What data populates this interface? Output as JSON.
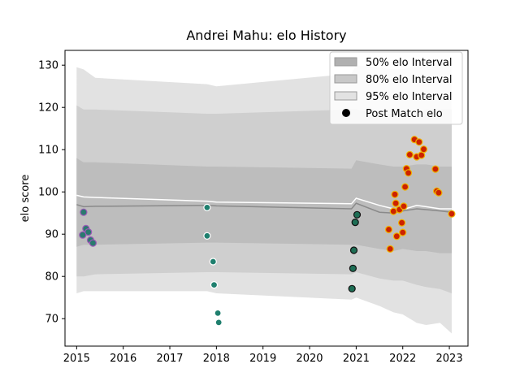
{
  "chart_data": {
    "type": "line",
    "title": "Andrei Mahu: elo History",
    "xlabel": "",
    "ylabel": "elo score",
    "xlim": [
      2014.75,
      2023.4
    ],
    "ylim": [
      63.5,
      133.5
    ],
    "x_ticks": [
      "2015",
      "2016",
      "2017",
      "2018",
      "2019",
      "2020",
      "2021",
      "2022",
      "2023"
    ],
    "y_ticks": [
      "70",
      "80",
      "90",
      "100",
      "110",
      "120",
      "130"
    ],
    "grid": false,
    "legend_position": "top-right",
    "legend": [
      {
        "label": "50% elo Interval",
        "color": "#b0b0b0"
      },
      {
        "label": "80% elo Interval",
        "color": "#c8c8c8"
      },
      {
        "label": "95% elo Interval",
        "color": "#e2e2e2"
      },
      {
        "label": "Post Match elo",
        "color": "#000000"
      }
    ],
    "bands": {
      "x": [
        2015.0,
        2015.15,
        2015.4,
        2017.8,
        2018.0,
        2020.9,
        2021.0,
        2021.5,
        2021.8,
        2022.0,
        2022.3,
        2022.5,
        2022.8,
        2023.05
      ],
      "mean": [
        97.0,
        96.5,
        96.6,
        96.8,
        96.7,
        96.0,
        97.3,
        95.2,
        95.0,
        95.5,
        96.0,
        95.8,
        95.5,
        95.2
      ],
      "expected": [
        99.2,
        98.8,
        98.7,
        97.8,
        97.6,
        97.2,
        98.5,
        96.8,
        96.0,
        95.8,
        96.8,
        96.5,
        96.0,
        96.0
      ],
      "p50": [
        [
          87.0,
          108.0
        ],
        [
          87.5,
          107.0
        ],
        [
          87.5,
          107.0
        ],
        [
          88.0,
          106.0
        ],
        [
          88.0,
          106.0
        ],
        [
          87.5,
          105.5
        ],
        [
          87.5,
          107.5
        ],
        [
          86.5,
          106.5
        ],
        [
          86.0,
          106.0
        ],
        [
          86.5,
          106.0
        ],
        [
          86.0,
          106.5
        ],
        [
          86.0,
          106.5
        ],
        [
          85.5,
          106.0
        ],
        [
          85.5,
          106.0
        ]
      ],
      "p80": [
        [
          80.0,
          120.5
        ],
        [
          80.0,
          119.5
        ],
        [
          80.5,
          119.5
        ],
        [
          81.0,
          118.5
        ],
        [
          81.0,
          118.5
        ],
        [
          80.5,
          119.5
        ],
        [
          81.0,
          119.5
        ],
        [
          79.5,
          118.5
        ],
        [
          79.0,
          118.5
        ],
        [
          79.0,
          118.5
        ],
        [
          78.0,
          119.0
        ],
        [
          77.5,
          119.5
        ],
        [
          77.0,
          119.5
        ],
        [
          76.0,
          119.5
        ]
      ],
      "p95": [
        [
          76.0,
          129.5
        ],
        [
          76.5,
          129.0
        ],
        [
          76.5,
          127.0
        ],
        [
          76.5,
          125.5
        ],
        [
          76.0,
          125.0
        ],
        [
          74.5,
          128.0
        ],
        [
          75.0,
          130.0
        ],
        [
          73.0,
          129.5
        ],
        [
          71.5,
          129.0
        ],
        [
          71.0,
          129.0
        ],
        [
          69.0,
          130.0
        ],
        [
          68.5,
          130.5
        ],
        [
          69.0,
          130.5
        ],
        [
          66.5,
          130.5
        ]
      ]
    },
    "series": [
      {
        "name": "Post Match elo",
        "fill": "#2a7a6f",
        "stroke": "#9b59b6",
        "points": [
          [
            2015.15,
            95.2
          ],
          [
            2015.2,
            91.3
          ],
          [
            2015.25,
            90.5
          ],
          [
            2015.13,
            89.8
          ],
          [
            2015.3,
            88.6
          ],
          [
            2015.35,
            87.9
          ]
        ]
      },
      {
        "name": "Post Match elo",
        "fill": "#1f7f6e",
        "stroke": "#ffffff",
        "points": [
          [
            2017.8,
            96.3
          ],
          [
            2017.8,
            89.6
          ],
          [
            2017.93,
            83.5
          ],
          [
            2017.95,
            78.0
          ],
          [
            2018.03,
            71.3
          ],
          [
            2018.05,
            69.1
          ]
        ]
      },
      {
        "name": "Post Match elo",
        "fill": "#1e6e55",
        "stroke": "#111111",
        "points": [
          [
            2021.02,
            94.6
          ],
          [
            2020.98,
            92.8
          ],
          [
            2020.95,
            86.2
          ],
          [
            2020.93,
            81.9
          ],
          [
            2020.91,
            77.1
          ]
        ]
      },
      {
        "name": "Post Match elo",
        "fill": "#cc2200",
        "stroke": "#f0b400",
        "points": [
          [
            2021.7,
            91.1
          ],
          [
            2021.73,
            86.5
          ],
          [
            2021.8,
            95.4
          ],
          [
            2021.83,
            99.4
          ],
          [
            2021.85,
            97.3
          ],
          [
            2021.87,
            89.5
          ],
          [
            2021.93,
            95.8
          ],
          [
            2021.98,
            92.7
          ],
          [
            2022.0,
            90.4
          ],
          [
            2022.02,
            96.6
          ],
          [
            2022.05,
            101.2
          ],
          [
            2022.08,
            105.5
          ],
          [
            2022.12,
            104.5
          ],
          [
            2022.15,
            108.8
          ],
          [
            2022.25,
            112.4
          ],
          [
            2022.3,
            108.3
          ],
          [
            2022.35,
            111.8
          ],
          [
            2022.4,
            108.7
          ],
          [
            2022.45,
            110.1
          ],
          [
            2022.7,
            105.4
          ],
          [
            2022.73,
            100.2
          ],
          [
            2022.77,
            99.8
          ],
          [
            2023.05,
            94.8
          ]
        ]
      }
    ]
  }
}
